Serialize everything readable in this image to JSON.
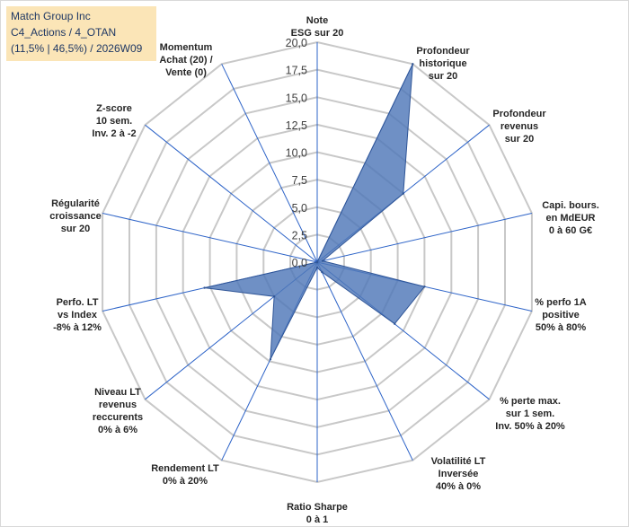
{
  "header": {
    "line1": "Match Group Inc",
    "line2": "C4_Actions / 4_OTAN",
    "line3": "(11,5% | 46,5%) / 2026W09"
  },
  "chart_data": {
    "type": "radar",
    "rmin": 0,
    "rmax": 20,
    "ticks": [
      "0,0",
      "2,5",
      "5,0",
      "7,5",
      "10,0",
      "12,5",
      "15,0",
      "17,5",
      "20,0"
    ],
    "grid": true,
    "legend": "none",
    "colors": {
      "fill": "#4f78b8",
      "grid": "#c8c8c8",
      "axis": "#2e64c8"
    },
    "axes": [
      {
        "label": [
          "Note",
          "ESG sur 20"
        ],
        "value": 0.0
      },
      {
        "label": [
          "Profondeur",
          "historique",
          "sur 20"
        ],
        "value": 20.0
      },
      {
        "label": [
          "Profondeur",
          "revenus",
          "sur 20"
        ],
        "value": 10.0
      },
      {
        "label": [
          "Capi. bours.",
          "en MdEUR",
          "0 à 60 G€"
        ],
        "value": 0.5
      },
      {
        "label": [
          "% perfo 1A",
          "positive",
          "50% à 80%"
        ],
        "value": 10.0
      },
      {
        "label": [
          "% perte max.",
          "sur 1 sem.",
          "Inv. 50% à 20%"
        ],
        "value": 9.0
      },
      {
        "label": [
          "Volatilité LT",
          "Inversée",
          "40% à 0%"
        ],
        "value": 1.0
      },
      {
        "label": [
          "Ratio Sharpe",
          "0 à 1"
        ],
        "value": 0.5
      },
      {
        "label": [
          "Rendement LT",
          "0% à 20%"
        ],
        "value": 9.8
      },
      {
        "label": [
          "Niveau LT",
          "revenus",
          "reccurents",
          "0% à 6%"
        ],
        "value": 5.0
      },
      {
        "label": [
          "Perfo. LT",
          "vs Index",
          "-8% à 12%"
        ],
        "value": 10.5
      },
      {
        "label": [
          "Régularité",
          "croissance",
          "sur 20"
        ],
        "value": 0.0
      },
      {
        "label": [
          "Z-score",
          "10 sem.",
          "Inv. 2 à -2"
        ],
        "value": 0.0
      },
      {
        "label": [
          "Momentum",
          "Achat (20) /",
          "Vente (0)"
        ],
        "value": 0.0
      }
    ]
  }
}
